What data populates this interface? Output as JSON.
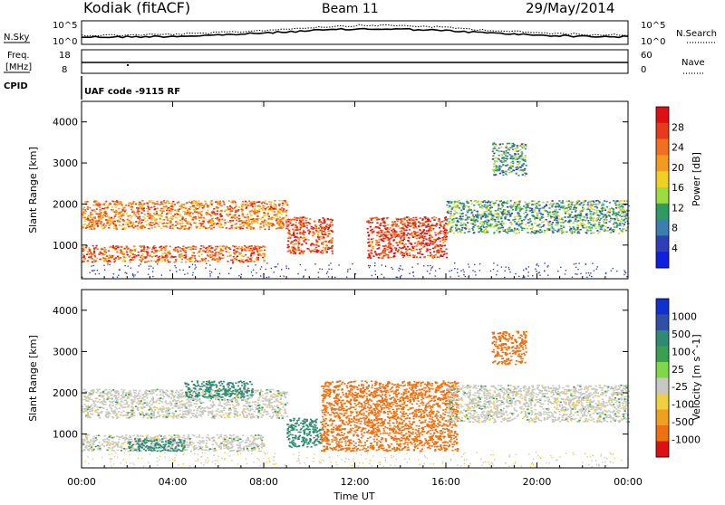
{
  "header": {
    "station": "Kodiak (fitACF)",
    "beam": "Beam 11",
    "date": "29/May/2014"
  },
  "nsky_panel": {
    "left_label": "N.Sky",
    "right_label": "N.Search",
    "left_ticks": [
      "10^5",
      "10^0"
    ],
    "right_ticks": [
      "10^5",
      "10^0"
    ]
  },
  "freq_panel": {
    "left_label_line1": "Freq.",
    "left_label_line2": "[MHz]",
    "right_label": "Nave",
    "left_ticks": [
      "18",
      "8"
    ],
    "right_ticks": [
      "60",
      "0"
    ],
    "cpid_label": "CPID",
    "cpid_text": "UAF code -9115 RF"
  },
  "xaxis": {
    "title": "Time UT",
    "ticks": [
      "00:00",
      "04:00",
      "08:00",
      "12:00",
      "16:00",
      "20:00",
      "00:00"
    ]
  },
  "chart_data": [
    {
      "type": "heatmap",
      "title": "Power",
      "xlabel": "Time UT",
      "ylabel": "Slant Range [km]",
      "x_range_hours": [
        0,
        24
      ],
      "y_range_km": [
        180,
        4500
      ],
      "y_ticks": [
        1000,
        2000,
        3000,
        4000
      ],
      "colorbar": {
        "label": "Power [dB]",
        "ticks": [
          "4",
          "8",
          "12",
          "16",
          "20",
          "24",
          "28"
        ],
        "colors": [
          "#1020e0",
          "#2e3fb8",
          "#3a7fb0",
          "#2f9a62",
          "#9bdc40",
          "#f0d020",
          "#f59a20",
          "#f07020",
          "#e83a1a",
          "#e01010"
        ]
      },
      "features": [
        {
          "t_start": 0.0,
          "t_end": 9.0,
          "range_start": 1400,
          "range_end": 2100,
          "power_db": 22
        },
        {
          "t_start": 0.0,
          "t_end": 8.0,
          "range_start": 600,
          "range_end": 1000,
          "power_db": 24
        },
        {
          "t_start": 9.0,
          "t_end": 11.0,
          "range_start": 800,
          "range_end": 1700,
          "power_db": 26
        },
        {
          "t_start": 12.5,
          "t_end": 16.0,
          "range_start": 700,
          "range_end": 1700,
          "power_db": 27
        },
        {
          "t_start": 16.0,
          "t_end": 24.0,
          "range_start": 1300,
          "range_end": 2100,
          "power_db": 10
        },
        {
          "t_start": 18.0,
          "t_end": 19.5,
          "range_start": 2700,
          "range_end": 3500,
          "power_db": 9
        }
      ]
    },
    {
      "type": "heatmap",
      "title": "Velocity",
      "xlabel": "Time UT",
      "ylabel": "Slant Range [km]",
      "x_range_hours": [
        0,
        24
      ],
      "y_range_km": [
        180,
        4500
      ],
      "y_ticks": [
        1000,
        2000,
        3000,
        4000
      ],
      "colorbar": {
        "label": "Velocity [m s^-1]",
        "ticks": [
          "1000",
          "500",
          "100",
          "25",
          "-25",
          "-100",
          "-500",
          "-1000"
        ],
        "colors": [
          "#1030d0",
          "#2f4fa8",
          "#2f8a72",
          "#3aa050",
          "#7ed848",
          "#c8c8c0",
          "#f0d040",
          "#f0a020",
          "#f07010",
          "#e01010"
        ]
      },
      "features": [
        {
          "t_start": 0.0,
          "t_end": 9.0,
          "range_start": 1400,
          "range_end": 2100,
          "velocity": 0
        },
        {
          "t_start": 0.0,
          "t_end": 8.0,
          "range_start": 600,
          "range_end": 1000,
          "velocity": 0
        },
        {
          "t_start": 2.0,
          "t_end": 4.5,
          "range_start": 600,
          "range_end": 900,
          "velocity": 150
        },
        {
          "t_start": 4.5,
          "t_end": 7.5,
          "range_start": 1900,
          "range_end": 2300,
          "velocity": 150
        },
        {
          "t_start": 9.0,
          "t_end": 10.5,
          "range_start": 700,
          "range_end": 1400,
          "velocity": 300
        },
        {
          "t_start": 10.5,
          "t_end": 16.5,
          "range_start": 600,
          "range_end": 2300,
          "velocity": -300
        },
        {
          "t_start": 16.0,
          "t_end": 24.0,
          "range_start": 1300,
          "range_end": 2200,
          "velocity": 0
        },
        {
          "t_start": 18.0,
          "t_end": 19.5,
          "range_start": 2700,
          "range_end": 3500,
          "velocity": -300
        }
      ]
    }
  ]
}
